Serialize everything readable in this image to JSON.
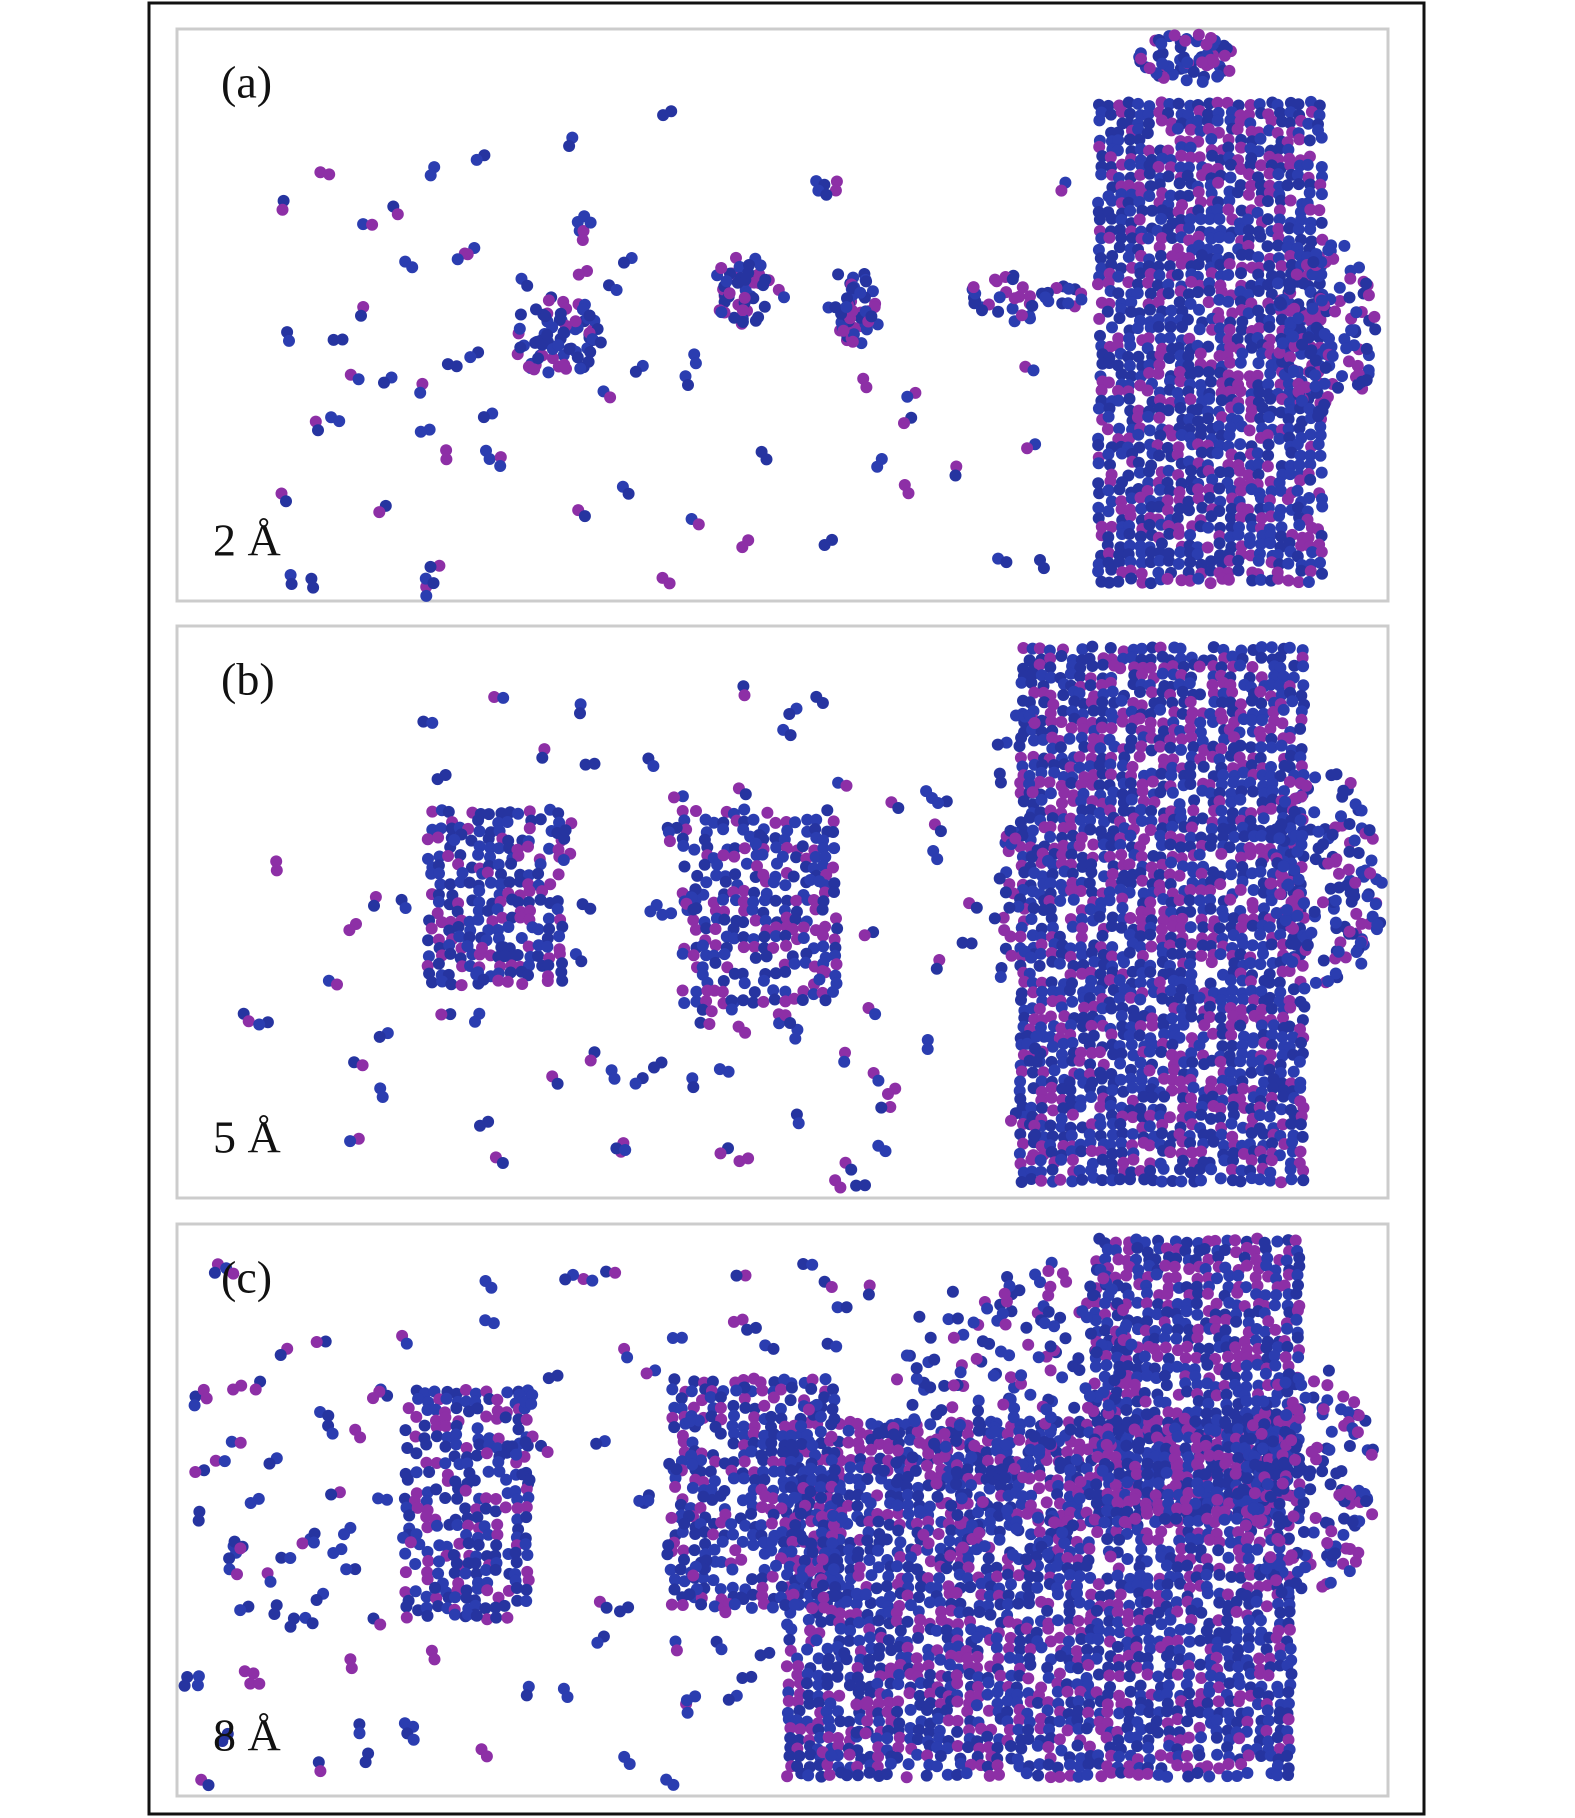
{
  "panels": [
    {
      "label": "(a)",
      "spacing": "2 Å"
    },
    {
      "label": "(b)",
      "spacing": "5 Å"
    },
    {
      "label": "(c)",
      "spacing": "8 Å"
    }
  ]
}
